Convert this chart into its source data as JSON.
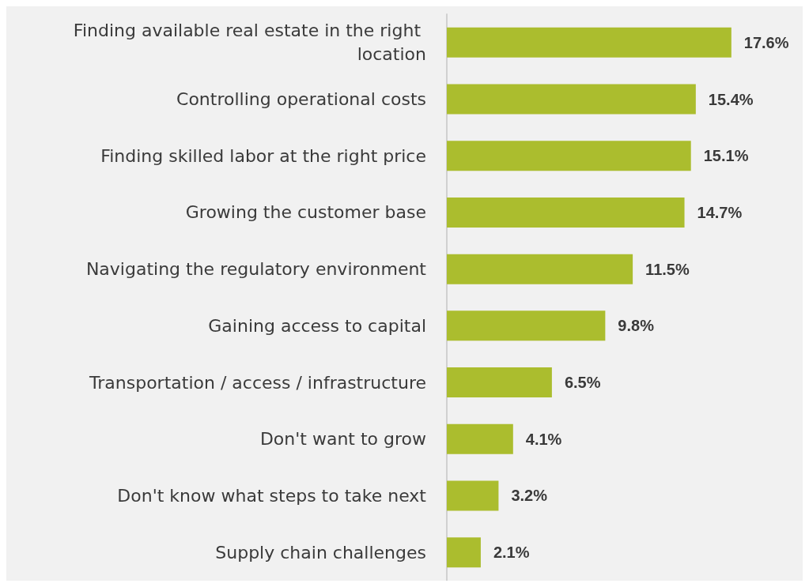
{
  "chart_data": {
    "type": "bar",
    "orientation": "horizontal",
    "categories": [
      "Finding available real estate in the right location",
      "Controlling operational costs",
      "Finding skilled labor at the right price",
      "Growing the customer base",
      "Navigating the regulatory environment",
      "Gaining access to capital",
      "Transportation / access / infrastructure",
      "Don't want to grow",
      "Don't know what steps to take next",
      "Supply chain challenges"
    ],
    "values": [
      17.6,
      15.4,
      15.1,
      14.7,
      11.5,
      9.8,
      6.5,
      4.1,
      3.2,
      2.1
    ],
    "value_labels": [
      "17.6%",
      "15.4%",
      "15.1%",
      "14.7%",
      "11.5%",
      "9.8%",
      "6.5%",
      "4.1%",
      "3.2%",
      "2.1%"
    ],
    "color": "#abbd2e"
  }
}
